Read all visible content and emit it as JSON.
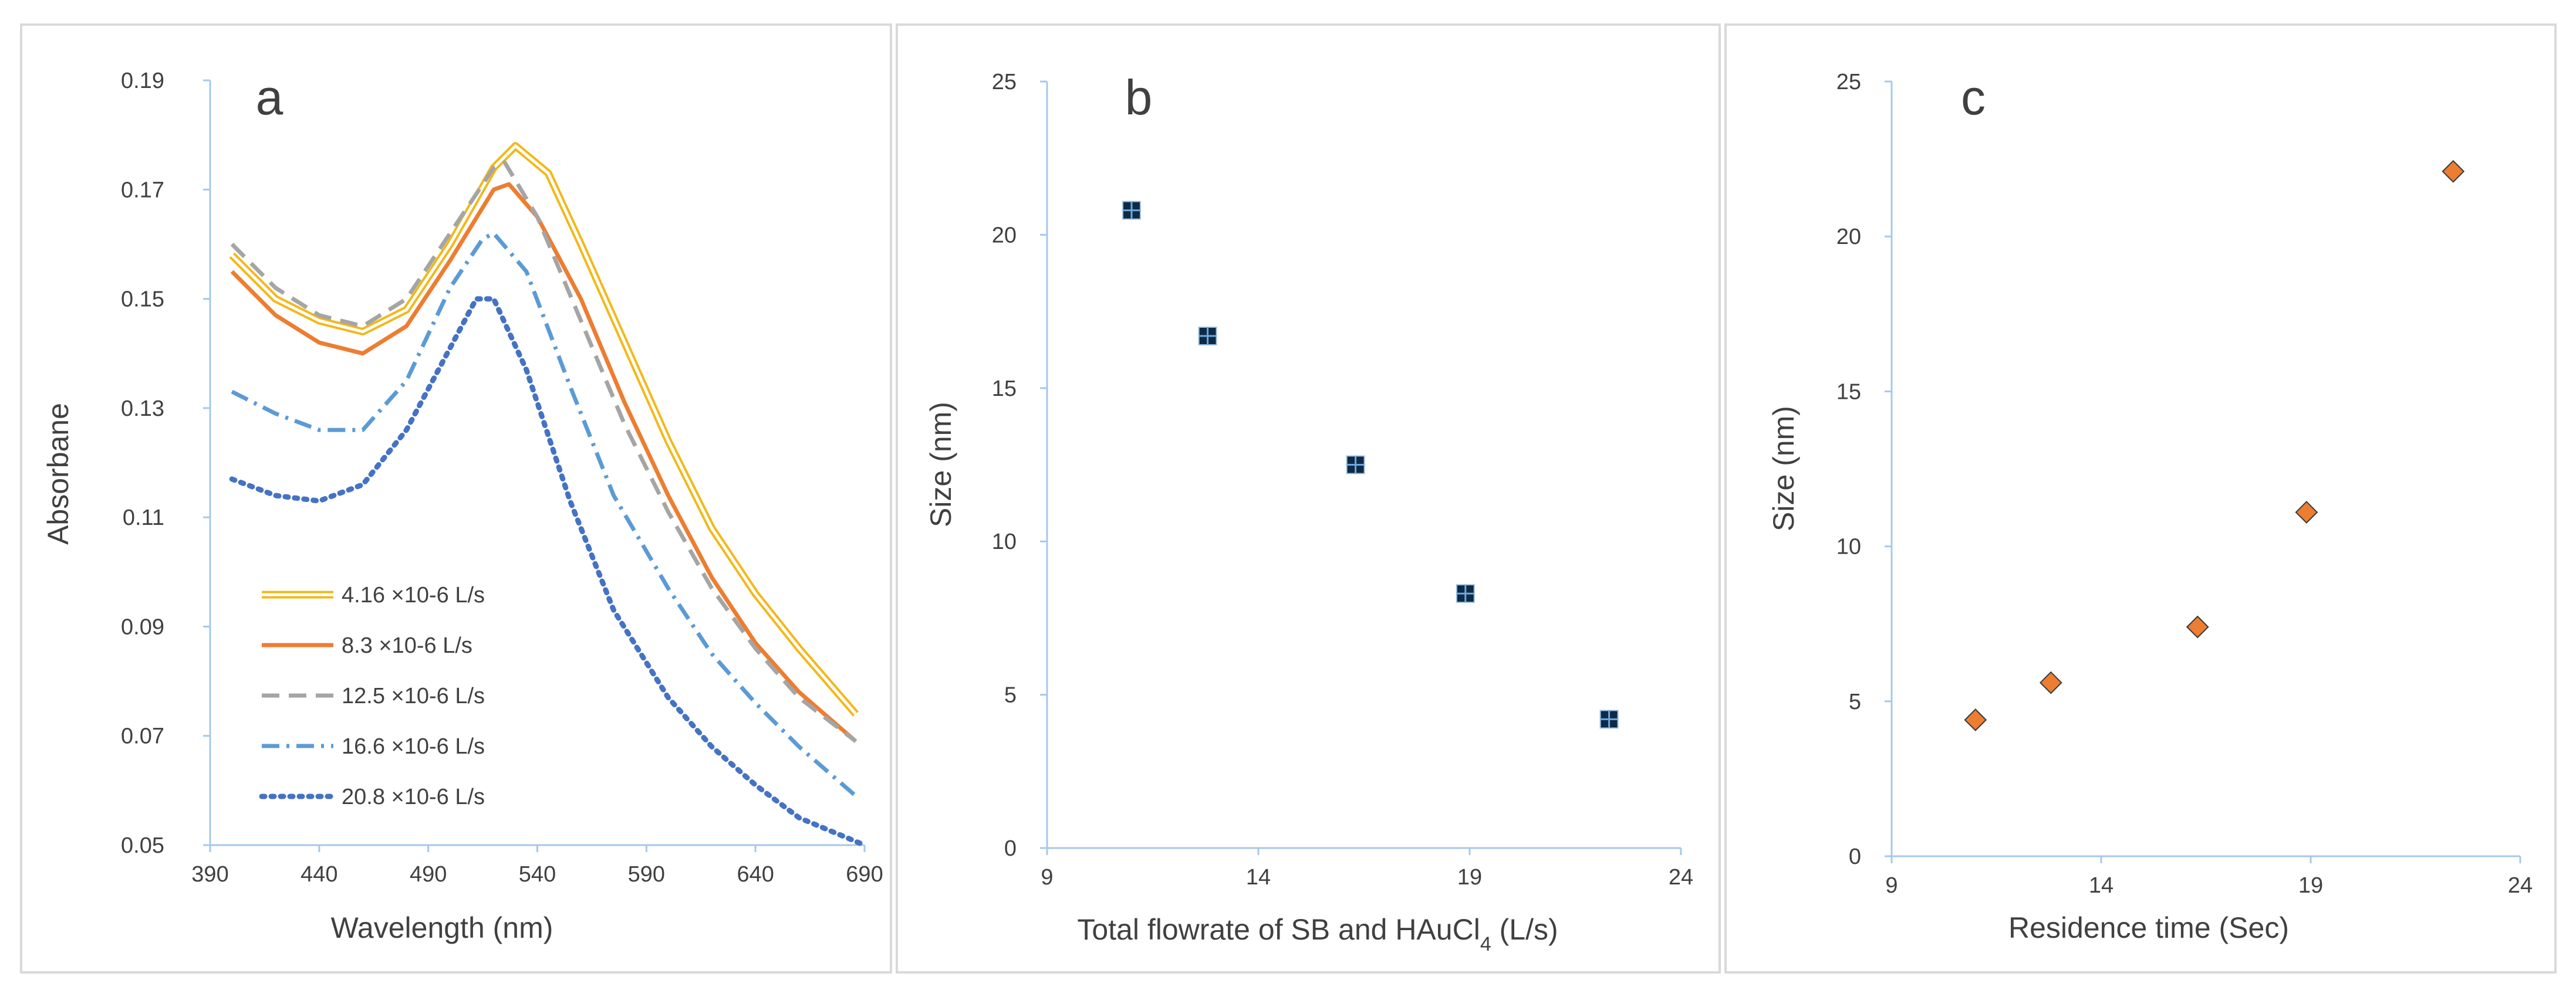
{
  "chart_data": [
    {
      "id": "a",
      "type": "line",
      "panel_label": "a",
      "xlabel": "Wavelength (nm)",
      "ylabel": "Absorbane",
      "xlim": [
        390,
        690
      ],
      "ylim": [
        0.05,
        0.19
      ],
      "xticks": [
        390,
        440,
        490,
        540,
        590,
        640,
        690
      ],
      "yticks": [
        0.05,
        0.07,
        0.09,
        0.11,
        0.13,
        0.15,
        0.17,
        0.19
      ],
      "tick_labels_x": [
        "390",
        "440",
        "490",
        "540",
        "590",
        "640",
        "690"
      ],
      "tick_labels_y": [
        "0.05",
        "0.07",
        "0.09",
        "0.11",
        "0.13",
        "0.15",
        "0.17",
        "0.19"
      ],
      "legend_position": "bottom-left",
      "series": [
        {
          "name": "4.16 ×10-6 L/s",
          "color": "#f2b81a",
          "style": "double",
          "points": [
            [
              400,
              0.158
            ],
            [
              420,
              0.15
            ],
            [
              440,
              0.146
            ],
            [
              460,
              0.144
            ],
            [
              480,
              0.148
            ],
            [
              500,
              0.16
            ],
            [
              520,
              0.174
            ],
            [
              530,
              0.178
            ],
            [
              545,
              0.173
            ],
            [
              560,
              0.16
            ],
            [
              580,
              0.142
            ],
            [
              600,
              0.124
            ],
            [
              620,
              0.108
            ],
            [
              640,
              0.096
            ],
            [
              660,
              0.086
            ],
            [
              686,
              0.074
            ]
          ]
        },
        {
          "name": "8.3 ×10-6 L/s",
          "color": "#ed7d31",
          "style": "solid",
          "points": [
            [
              400,
              0.155
            ],
            [
              420,
              0.147
            ],
            [
              440,
              0.142
            ],
            [
              460,
              0.14
            ],
            [
              480,
              0.145
            ],
            [
              500,
              0.157
            ],
            [
              520,
              0.17
            ],
            [
              527,
              0.171
            ],
            [
              540,
              0.165
            ],
            [
              560,
              0.15
            ],
            [
              580,
              0.131
            ],
            [
              600,
              0.114
            ],
            [
              620,
              0.099
            ],
            [
              640,
              0.087
            ],
            [
              660,
              0.078
            ],
            [
              686,
              0.069
            ]
          ]
        },
        {
          "name": "12.5 ×10-6 L/s",
          "color": "#a5a5a5",
          "style": "dash",
          "points": [
            [
              400,
              0.16
            ],
            [
              420,
              0.152
            ],
            [
              440,
              0.147
            ],
            [
              460,
              0.145
            ],
            [
              480,
              0.15
            ],
            [
              500,
              0.162
            ],
            [
              520,
              0.174
            ],
            [
              525,
              0.175
            ],
            [
              540,
              0.165
            ],
            [
              560,
              0.146
            ],
            [
              580,
              0.127
            ],
            [
              600,
              0.111
            ],
            [
              620,
              0.097
            ],
            [
              640,
              0.086
            ],
            [
              660,
              0.077
            ],
            [
              686,
              0.069
            ]
          ]
        },
        {
          "name": "16.6 ×10-6 L/s",
          "color": "#5b9bd5",
          "style": "dashdot",
          "points": [
            [
              400,
              0.133
            ],
            [
              420,
              0.129
            ],
            [
              440,
              0.126
            ],
            [
              460,
              0.126
            ],
            [
              480,
              0.135
            ],
            [
              500,
              0.152
            ],
            [
              515,
              0.161
            ],
            [
              520,
              0.162
            ],
            [
              535,
              0.155
            ],
            [
              555,
              0.134
            ],
            [
              575,
              0.114
            ],
            [
              600,
              0.097
            ],
            [
              620,
              0.085
            ],
            [
              640,
              0.076
            ],
            [
              660,
              0.068
            ],
            [
              686,
              0.059
            ]
          ]
        },
        {
          "name": "20.8 ×10-6 L/s",
          "color": "#4472c4",
          "style": "dot",
          "points": [
            [
              400,
              0.117
            ],
            [
              420,
              0.114
            ],
            [
              440,
              0.113
            ],
            [
              460,
              0.116
            ],
            [
              480,
              0.126
            ],
            [
              500,
              0.141
            ],
            [
              512,
              0.15
            ],
            [
              520,
              0.15
            ],
            [
              535,
              0.137
            ],
            [
              555,
              0.113
            ],
            [
              575,
              0.093
            ],
            [
              600,
              0.077
            ],
            [
              620,
              0.068
            ],
            [
              640,
              0.061
            ],
            [
              660,
              0.055
            ],
            [
              690,
              0.05
            ]
          ]
        }
      ]
    },
    {
      "id": "b",
      "type": "scatter",
      "panel_label": "b",
      "xlabel": "Total flowrate of SB and HAuCl4 (L/s)",
      "xlabel_parts": {
        "before": "Total flowrate of SB and HAuCl",
        "sub": "4",
        "after": " (L/s)"
      },
      "ylabel": "Size (nm)",
      "xlim": [
        9,
        24
      ],
      "ylim": [
        0,
        25
      ],
      "xticks": [
        9,
        14,
        19,
        24
      ],
      "yticks": [
        0,
        5,
        10,
        15,
        20,
        25
      ],
      "tick_labels_x": [
        "9",
        "14",
        "19",
        "24"
      ],
      "tick_labels_y": [
        "0",
        "5",
        "10",
        "15",
        "20",
        "25"
      ],
      "marker": "square",
      "marker_color": "#0d2b47",
      "series": [
        {
          "name": "Size",
          "x": [
            11.0,
            12.8,
            16.3,
            18.9,
            22.3
          ],
          "y": [
            20.8,
            16.7,
            12.5,
            8.3,
            4.2
          ]
        }
      ]
    },
    {
      "id": "c",
      "type": "scatter",
      "panel_label": "c",
      "xlabel": "Residence time (Sec)",
      "ylabel": "Size (nm)",
      "xlim": [
        9,
        24
      ],
      "ylim": [
        0,
        25
      ],
      "xticks": [
        9,
        14,
        19,
        24
      ],
      "yticks": [
        0,
        5,
        10,
        15,
        20,
        25
      ],
      "tick_labels_x": [
        "9",
        "14",
        "19",
        "24"
      ],
      "tick_labels_y": [
        "0",
        "5",
        "10",
        "15",
        "20",
        "25"
      ],
      "marker": "diamond",
      "marker_color": "#ed7d31",
      "series": [
        {
          "name": "Size",
          "x": [
            11.0,
            12.8,
            16.3,
            18.9,
            22.4
          ],
          "y": [
            4.4,
            5.6,
            7.4,
            11.1,
            22.1
          ]
        }
      ]
    }
  ]
}
